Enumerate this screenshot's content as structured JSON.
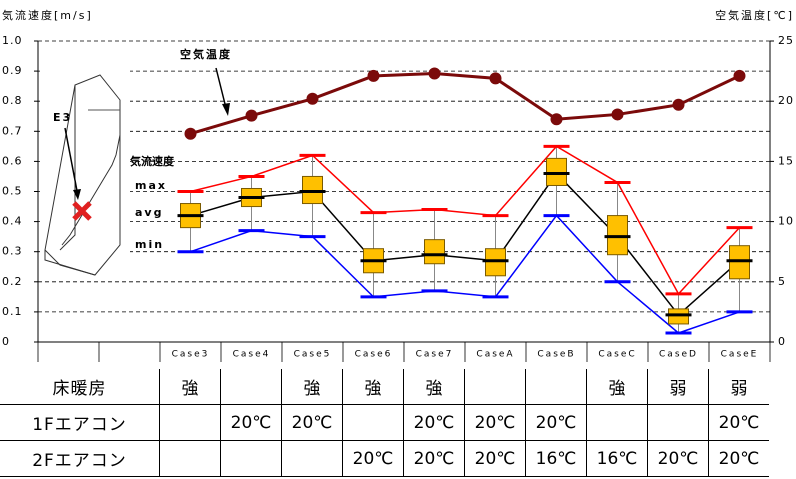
{
  "chart_data": {
    "type": "box",
    "y_label": "気流速度[m/s]",
    "y2_label": "空気温度[℃]",
    "annotations": [
      "気流速度",
      "E3"
    ],
    "categories": [
      null,
      null,
      "Case3",
      "Case4",
      "Case5",
      "Case6",
      "Case7",
      "CaseA",
      "CaseB",
      "CaseC",
      "CaseD",
      "CaseE"
    ],
    "series": [
      {
        "name": "max",
        "color": "#ff0000",
        "values": [
          null,
          null,
          0.5,
          0.55,
          0.62,
          0.43,
          0.44,
          0.42,
          0.65,
          0.53,
          0.16,
          0.38
        ]
      },
      {
        "name": "avg",
        "color": "#000000",
        "values": [
          null,
          null,
          0.42,
          0.48,
          0.5,
          0.27,
          0.29,
          0.27,
          0.56,
          0.35,
          0.09,
          0.27
        ]
      },
      {
        "name": "min",
        "color": "#0000ff",
        "values": [
          null,
          null,
          0.3,
          0.37,
          0.35,
          0.15,
          0.17,
          0.15,
          0.42,
          0.2,
          0.03,
          0.1
        ]
      },
      {
        "name": "空気温度",
        "color": "#7b0a0a",
        "axis": "y2",
        "values": [
          null,
          null,
          17.3,
          18.8,
          20.2,
          22.1,
          22.3,
          21.9,
          18.5,
          18.9,
          19.7,
          22.1
        ]
      }
    ],
    "box_low": [
      null,
      null,
      0.38,
      0.45,
      0.46,
      0.23,
      0.26,
      0.22,
      0.52,
      0.29,
      0.06,
      0.21
    ],
    "box_high": [
      null,
      null,
      0.46,
      0.51,
      0.55,
      0.31,
      0.34,
      0.31,
      0.61,
      0.42,
      0.11,
      0.32
    ],
    "box_color": "#ffc000",
    "ylim": [
      0,
      1
    ],
    "yticks": [
      0,
      0.1,
      0.2,
      0.3,
      0.4,
      0.5,
      0.6,
      0.7,
      0.8,
      0.9,
      {
        "value": 1,
        "label": "1.0"
      }
    ],
    "y2lim": [
      0,
      25
    ],
    "y2ticks": [
      0,
      5,
      10,
      15,
      20,
      25
    ],
    "grid": true
  },
  "table": {
    "rows": [
      [
        "床暖房",
        "強",
        null,
        "強",
        "強",
        "強",
        null,
        null,
        "強",
        "弱",
        "弱"
      ],
      [
        "1Fエアコン",
        null,
        "20℃",
        "20℃",
        null,
        "20℃",
        "20℃",
        "20℃",
        null,
        null,
        "20℃"
      ],
      [
        "2Fエアコン",
        null,
        null,
        null,
        "20℃",
        "20℃",
        "20℃",
        "16℃",
        "16℃",
        "20℃",
        "20℃"
      ]
    ]
  }
}
